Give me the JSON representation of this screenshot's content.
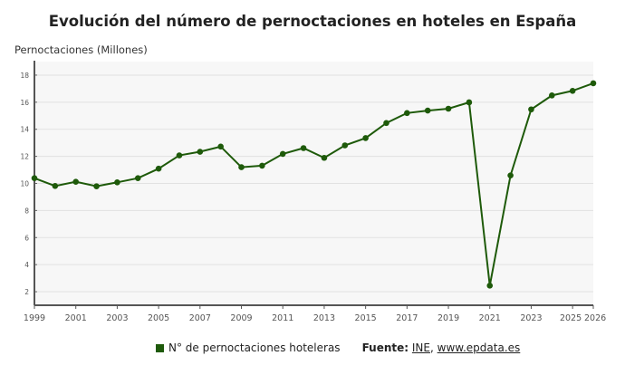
{
  "chart_data": {
    "type": "line",
    "title": "Evolución del número de pernoctaciones en hoteles en España",
    "ylabel": "Pernoctaciones (Millones)",
    "xlabel": "",
    "x": [
      1999,
      2000,
      2001,
      2002,
      2003,
      2004,
      2005,
      2006,
      2007,
      2008,
      2009,
      2010,
      2011,
      2012,
      2013,
      2014,
      2015,
      2016,
      2017,
      2018,
      2019,
      2020,
      2021,
      2022,
      2023,
      2024,
      2025,
      2026
    ],
    "series": [
      {
        "name": "N° de pernoctaciones hoteleras",
        "color": "#1e5a0a",
        "values": [
          10.39,
          9.81,
          10.12,
          9.79,
          10.08,
          10.39,
          11.09,
          12.07,
          12.34,
          12.72,
          11.2,
          11.31,
          12.18,
          12.61,
          11.89,
          12.81,
          13.35,
          14.46,
          15.2,
          15.38,
          15.52,
          15.99,
          2.45,
          10.59,
          15.47,
          16.5,
          16.84,
          17.4
        ]
      }
    ],
    "xticks": [
      "1999",
      "2001",
      "2003",
      "2005",
      "2007",
      "2009",
      "2011",
      "2013",
      "2015",
      "2017",
      "2019",
      "2021",
      "2023",
      "2025",
      "2026"
    ],
    "yticks": [
      2,
      4,
      6,
      8,
      10,
      12,
      14,
      16,
      18
    ],
    "ylim": [
      1,
      19
    ],
    "xlim": [
      1999,
      2026
    ],
    "grid": true,
    "legend_position": "bottom"
  },
  "legend": {
    "series_label": "N° de pernoctaciones hoteleras",
    "source_label": "Fuente:",
    "source_ine": "INE",
    "source_sep": ", ",
    "source_site": "www.epdata.es"
  }
}
